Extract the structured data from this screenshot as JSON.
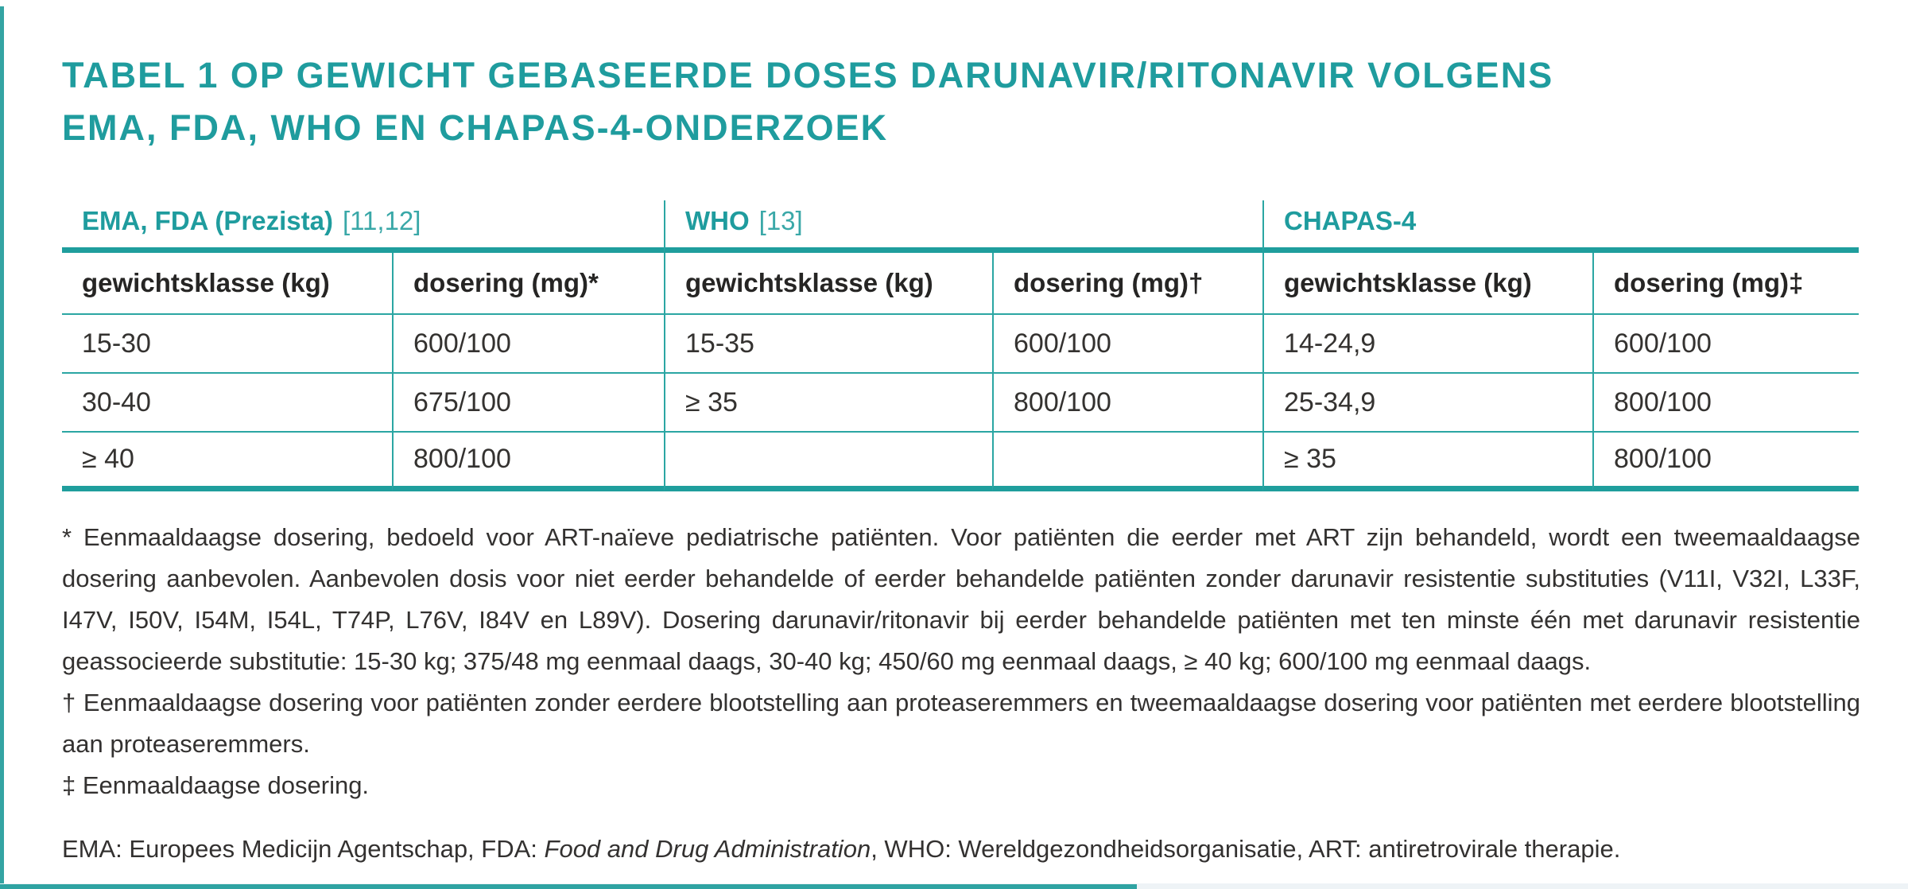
{
  "page": {
    "title_line1": "TABEL 1  OP GEWICHT GEBASEERDE DOSES DARUNAVIR/RITONAVIR VOLGENS",
    "title_line2": "EMA, FDA, WHO EN CHAPAS-4-ONDERZOEK"
  },
  "colors": {
    "accent_teal": "#1f9c9e",
    "line_teal": "#2ba6a3",
    "body_ink": "#2b2a28"
  },
  "table": {
    "groups": [
      {
        "label": "EMA, FDA (Prezista)",
        "ref": "[11,12]"
      },
      {
        "label": "WHO",
        "ref": "[13]"
      },
      {
        "label": "CHAPAS-4",
        "ref": ""
      }
    ],
    "columns": [
      "gewichtsklasse (kg)",
      "dosering (mg)*",
      "gewichtsklasse (kg)",
      "dosering (mg)†",
      "gewichtsklasse (kg)",
      "dosering (mg)‡"
    ],
    "rows": [
      [
        "15-30",
        "600/100",
        "15-35",
        "600/100",
        "14-24,9",
        "600/100"
      ],
      [
        "30-40",
        "675/100",
        "≥ 35",
        "800/100",
        "25-34,9",
        "800/100"
      ],
      [
        "≥ 40",
        "800/100",
        "",
        "",
        "≥ 35",
        "800/100"
      ]
    ]
  },
  "footnotes": {
    "star": "* Eenmaaldaagse dosering, bedoeld voor ART-naïeve pediatrische patiënten. Voor patiënten die eerder met ART zijn behandeld,  wordt een tweemaaldaagse dosering aanbevolen. Aanbevolen dosis voor niet eerder behandelde of eerder behandelde patiënten zonder darunavir resistentie substituties (V11I, V32I, L33F, I47V, I50V, I54M, I54L, T74P, L76V, I84V en L89V). Dosering darunavir/ritonavir bij eerder behandelde patiënten met ten minste één met darunavir resistentie geassocieerde substitutie: 15-30 kg; 375/48 mg eenmaal daags, 30-40 kg; 450/60 mg eenmaal daags, ≥ 40 kg; 600/100 mg eenmaal daags.",
    "dagger": "† Eenmaaldaagse dosering voor patiënten zonder eerdere blootstelling aan proteaseremmers en tweemaaldaagse dosering voor patiënten met eerdere blootstelling aan proteaseremmers.",
    "double_dagger": "‡ Eenmaaldaagse dosering.",
    "abbrev_prefix": "EMA: Europees Medicijn Agentschap, FDA: ",
    "abbrev_italic": "Food and Drug Administration",
    "abbrev_suffix": ", WHO: Wereldgezondheidsorganisatie, ART: antiretrovirale therapie."
  }
}
